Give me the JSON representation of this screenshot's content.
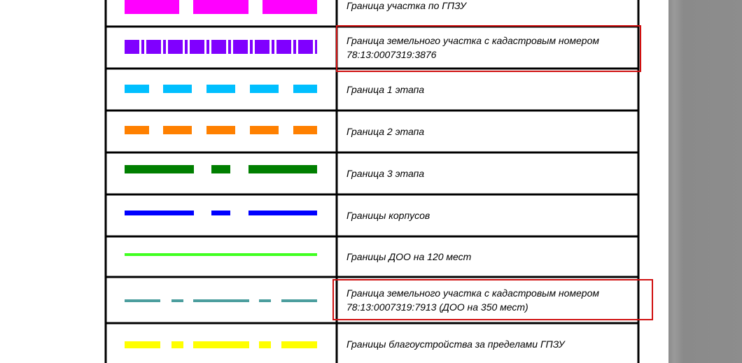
{
  "table": {
    "rows": [
      {
        "lines": [
          "Граница участка по ГПЗУ"
        ]
      },
      {
        "lines": [
          "Граница земельного участка с кадастровым номером",
          "78:13:0007319:3876"
        ]
      },
      {
        "lines": [
          "Граница 1 этапа"
        ]
      },
      {
        "lines": [
          "Граница 2 этапа"
        ]
      },
      {
        "lines": [
          "Граница 3 этапа"
        ]
      },
      {
        "lines": [
          "Границы корпусов"
        ]
      },
      {
        "lines": [
          "Границы ДОО на 120 мест"
        ]
      },
      {
        "lines": [
          "Граница земельного участка с кадастровым номером",
          "78:13:0007319:7913 (ДОО на 350 мест)"
        ]
      },
      {
        "lines": [
          "Границы благоустройства за пределами ГПЗУ"
        ]
      }
    ]
  }
}
